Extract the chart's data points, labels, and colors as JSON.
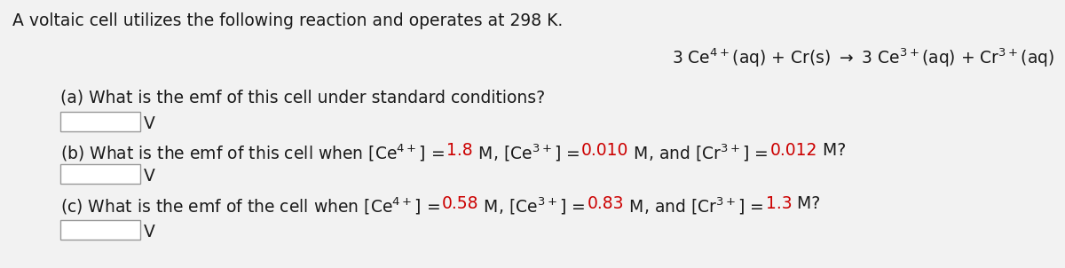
{
  "background_color": "#f2f2f2",
  "text_color": "#1a1a1a",
  "red_color": "#cc0000",
  "box_face_color": "#ffffff",
  "box_edge_color": "#999999",
  "font_size": 13.5,
  "title": "A voltaic cell utilizes the following reaction and operates at 298 K.",
  "reaction": "3 Ce$^{4+}$(aq) + Cr(s) $\\rightarrow$ 3 Ce$^{3+}$(aq) + Cr$^{3+}$(aq)",
  "part_a": "(a) What is the emf of this cell under standard conditions?",
  "part_b_prefix": "(b) What is the emf of this cell when [Ce$^{4+}$] = ",
  "part_b_val1": "1.8",
  "part_b_mid1": " M, [Ce$^{3+}$] = ",
  "part_b_val2": "0.010",
  "part_b_mid2": " M, and [Cr$^{3+}$] = ",
  "part_b_val3": "0.012",
  "part_b_suffix": " M?",
  "part_c_prefix": "(c) What is the emf of the cell when [Ce$^{4+}$] = ",
  "part_c_val1": "0.58",
  "part_c_mid1": " M, [Ce$^{3+}$] = ",
  "part_c_val2": "0.83",
  "part_c_mid2": " M, and [Cr$^{3+}$] = ",
  "part_c_val3": "1.3",
  "part_c_suffix": " M?",
  "unit": "V"
}
